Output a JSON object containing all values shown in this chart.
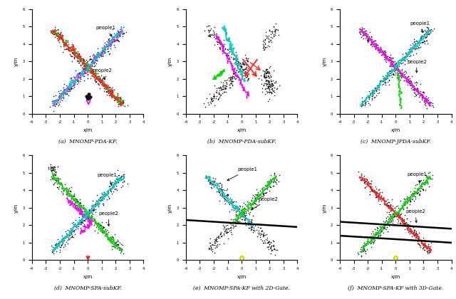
{
  "fig_width": 6.4,
  "fig_height": 4.2,
  "dpi": 100,
  "subplot_titles": [
    "(a)  MNOMP-PDA-KF.",
    "(b)  MNOMP-PDA-subKF.",
    "(c)  MNOMP-JPDA-subKF.",
    "(d)  MNOMP-SPA-subKF.",
    "(e)  MNOMP-SPA-KF with 2D-Gate.",
    "(f)  MNOMP-SPA-KF with 3D-Gate."
  ],
  "xlabel": "x/m",
  "ylabel": "y/m",
  "xlim": [
    -4,
    4
  ],
  "ylim": [
    0,
    6
  ],
  "label_fontsize": 5.0,
  "title_fontsize": 5.5
}
